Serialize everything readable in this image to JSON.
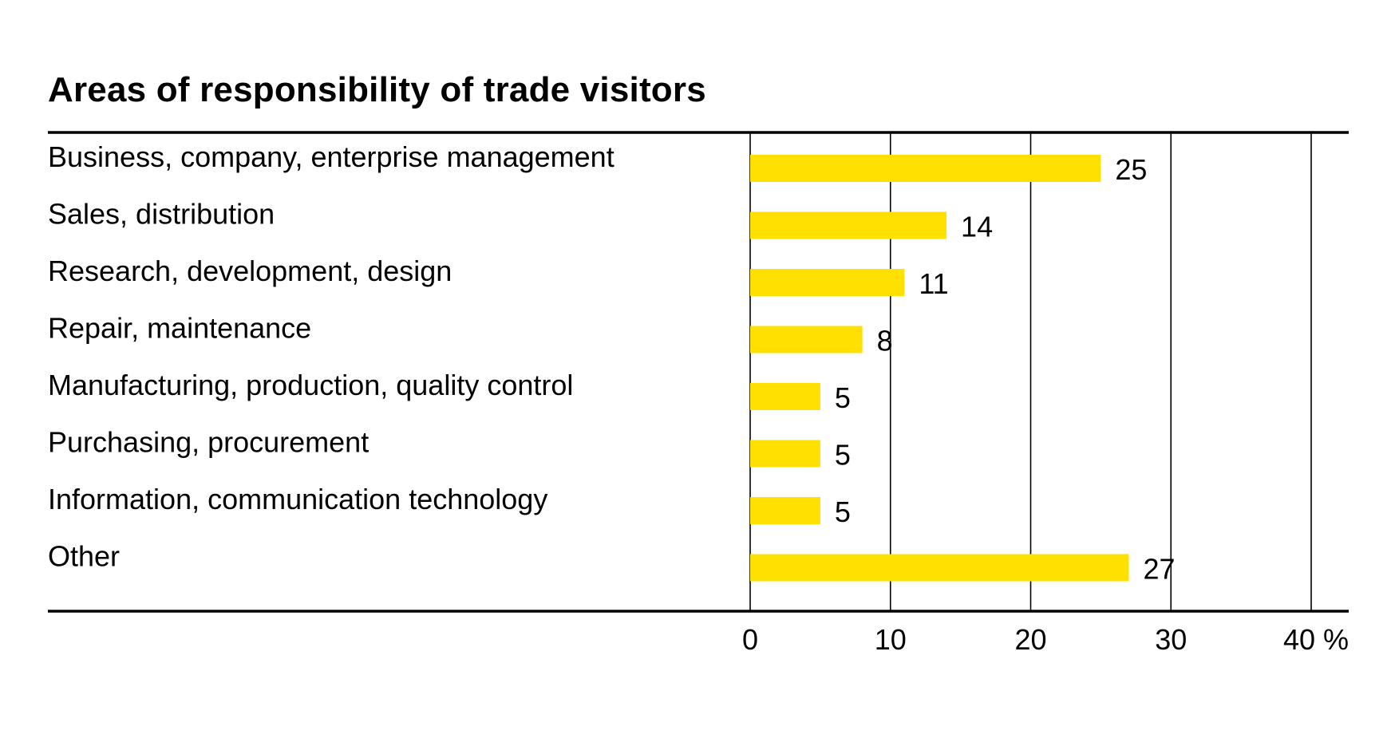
{
  "chart_data": {
    "type": "bar",
    "orientation": "horizontal",
    "title": "Areas of responsibility of trade visitors",
    "categories": [
      "Business, company, enterprise management",
      "Sales, distribution",
      "Research, development, design",
      "Repair, maintenance",
      "Manufacturing, production, quality control",
      "Purchasing, procurement",
      "Information, communication technology",
      "Other"
    ],
    "values": [
      25,
      14,
      11,
      8,
      5,
      5,
      5,
      27
    ],
    "value_labels": [
      "25",
      "14",
      "11",
      "8",
      "5",
      "5",
      "5",
      "27"
    ],
    "xlim": [
      0,
      40
    ],
    "xticks": [
      0,
      10,
      20,
      30,
      40
    ],
    "xtick_labels": [
      "0",
      "10",
      "20",
      "30",
      "40 %"
    ],
    "xlabel": "",
    "ylabel": "",
    "grid": "vertical",
    "legend": "none",
    "bar_color": "#FFE000",
    "grid_color": "#000000"
  }
}
